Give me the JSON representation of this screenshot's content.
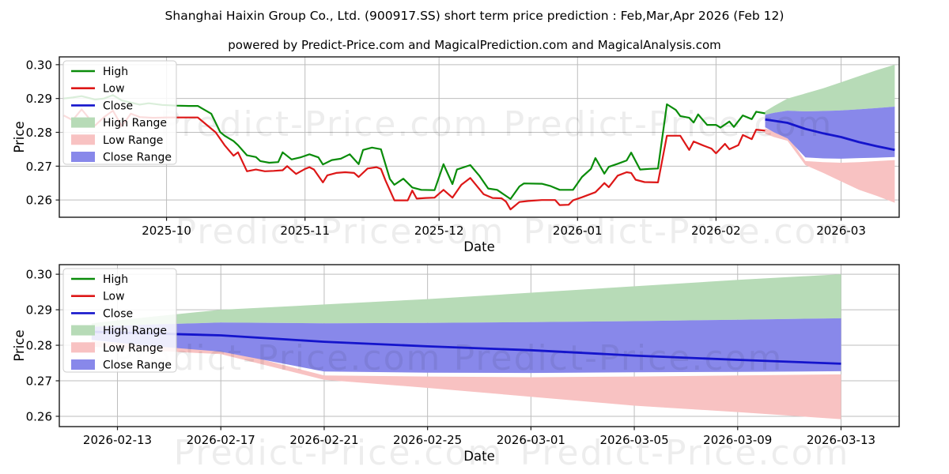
{
  "header": {
    "title": "Shanghai Haixin Group Co., Ltd. (900917.SS) short term price prediction : Feb,Mar,Apr 2026 (Feb 12)",
    "subtitle": "powered by Predict-Price.com and MagicalPrediction.com and MagicalAnalysis.com"
  },
  "watermark": {
    "text": "Predict-Price.com",
    "opacity": 0.07
  },
  "colors": {
    "high": "#0a8c0a",
    "low": "#dd1717",
    "close": "#1414cc",
    "high_range": "#b7dbb7",
    "low_range": "#f8c2c2",
    "close_range": "#8888ea",
    "grid": "#bdbdbd",
    "spine": "#1a1a1a",
    "tick_text": "#000000",
    "legend_border": "#cccccc"
  },
  "legend": {
    "entries": [
      {
        "label": "High",
        "swatch": "line",
        "color_key": "high"
      },
      {
        "label": "Low",
        "swatch": "line",
        "color_key": "low"
      },
      {
        "label": "Close",
        "swatch": "line",
        "color_key": "close"
      },
      {
        "label": "High Range",
        "swatch": "patch",
        "color_key": "high_range"
      },
      {
        "label": "Low Range",
        "swatch": "patch",
        "color_key": "low_range"
      },
      {
        "label": "Close Range",
        "swatch": "patch",
        "color_key": "close_range"
      }
    ]
  },
  "chart_data": [
    {
      "type": "line",
      "name": "history-and-forecast-chart",
      "xlabel": "Date",
      "ylabel": "Price",
      "grid": true,
      "legend_position": "upper left",
      "ylim": [
        0.2549,
        0.3023
      ],
      "xlim": [
        "2025-09-07",
        "2026-03-14"
      ],
      "yticks": [
        0.26,
        0.27,
        0.28,
        0.29,
        0.3
      ],
      "xticks": [
        {
          "d": "2025-10-01",
          "label": "2025-10"
        },
        {
          "d": "2025-11-01",
          "label": "2025-11"
        },
        {
          "d": "2025-12-01",
          "label": "2025-12"
        },
        {
          "d": "2026-01-01",
          "label": "2026-01"
        },
        {
          "d": "2026-02-01",
          "label": "2026-02"
        },
        {
          "d": "2026-03-01",
          "label": "2026-03"
        }
      ],
      "series": [
        {
          "name": "High",
          "color_key": "high",
          "points": [
            [
              "2025-09-08",
              0.29
            ],
            [
              "2025-09-10",
              0.2903
            ],
            [
              "2025-09-12",
              0.2907
            ],
            [
              "2025-09-15",
              0.2897
            ],
            [
              "2025-09-17",
              0.29
            ],
            [
              "2025-09-19",
              0.291
            ],
            [
              "2025-09-21",
              0.2894
            ],
            [
              "2025-09-23",
              0.2888
            ],
            [
              "2025-09-25",
              0.2882
            ],
            [
              "2025-09-27",
              0.2886
            ],
            [
              "2025-09-30",
              0.2881
            ],
            [
              "2025-10-03",
              0.2879
            ],
            [
              "2025-10-06",
              0.2878
            ],
            [
              "2025-10-08",
              0.2878
            ],
            [
              "2025-10-11",
              0.2855
            ],
            [
              "2025-10-13",
              0.2801
            ],
            [
              "2025-10-14",
              0.279
            ],
            [
              "2025-10-16",
              0.2774
            ],
            [
              "2025-10-17",
              0.2762
            ],
            [
              "2025-10-19",
              0.2732
            ],
            [
              "2025-10-21",
              0.2727
            ],
            [
              "2025-10-22",
              0.2715
            ],
            [
              "2025-10-24",
              0.271
            ],
            [
              "2025-10-26",
              0.2712
            ],
            [
              "2025-10-27",
              0.2741
            ],
            [
              "2025-10-29",
              0.272
            ],
            [
              "2025-10-31",
              0.2726
            ],
            [
              "2025-11-02",
              0.2735
            ],
            [
              "2025-11-04",
              0.2726
            ],
            [
              "2025-11-05",
              0.2705
            ],
            [
              "2025-11-07",
              0.2718
            ],
            [
              "2025-11-09",
              0.2722
            ],
            [
              "2025-11-11",
              0.2735
            ],
            [
              "2025-11-13",
              0.2706
            ],
            [
              "2025-11-14",
              0.2748
            ],
            [
              "2025-11-16",
              0.2755
            ],
            [
              "2025-11-18",
              0.275
            ],
            [
              "2025-11-20",
              0.2662
            ],
            [
              "2025-11-21",
              0.2645
            ],
            [
              "2025-11-23",
              0.2663
            ],
            [
              "2025-11-25",
              0.2637
            ],
            [
              "2025-11-27",
              0.263
            ],
            [
              "2025-11-30",
              0.2629
            ],
            [
              "2025-12-02",
              0.2706
            ],
            [
              "2025-12-04",
              0.2647
            ],
            [
              "2025-12-05",
              0.269
            ],
            [
              "2025-12-08",
              0.2703
            ],
            [
              "2025-12-10",
              0.2672
            ],
            [
              "2025-12-12",
              0.2634
            ],
            [
              "2025-12-14",
              0.263
            ],
            [
              "2025-12-17",
              0.2603
            ],
            [
              "2025-12-19",
              0.264
            ],
            [
              "2025-12-20",
              0.2649
            ],
            [
              "2025-12-24",
              0.2648
            ],
            [
              "2025-12-26",
              0.2641
            ],
            [
              "2025-12-28",
              0.263
            ],
            [
              "2025-12-31",
              0.263
            ],
            [
              "2026-01-02",
              0.2668
            ],
            [
              "2026-01-04",
              0.2692
            ],
            [
              "2026-01-05",
              0.2724
            ],
            [
              "2026-01-07",
              0.2678
            ],
            [
              "2026-01-08",
              0.2698
            ],
            [
              "2026-01-10",
              0.2707
            ],
            [
              "2026-01-12",
              0.2717
            ],
            [
              "2026-01-13",
              0.274
            ],
            [
              "2026-01-15",
              0.269
            ],
            [
              "2026-01-17",
              0.2692
            ],
            [
              "2026-01-19",
              0.2693
            ],
            [
              "2026-01-21",
              0.2883
            ],
            [
              "2026-01-23",
              0.2866
            ],
            [
              "2026-01-24",
              0.2848
            ],
            [
              "2026-01-26",
              0.2843
            ],
            [
              "2026-01-27",
              0.2829
            ],
            [
              "2026-01-28",
              0.2853
            ],
            [
              "2026-01-30",
              0.2822
            ],
            [
              "2026-02-01",
              0.2822
            ],
            [
              "2026-02-02",
              0.2814
            ],
            [
              "2026-02-04",
              0.2832
            ],
            [
              "2026-02-05",
              0.2816
            ],
            [
              "2026-02-07",
              0.285
            ],
            [
              "2026-02-09",
              0.2839
            ],
            [
              "2026-02-10",
              0.2861
            ],
            [
              "2026-02-12",
              0.2856
            ]
          ]
        },
        {
          "name": "Low",
          "color_key": "low",
          "points": [
            [
              "2025-09-08",
              0.285
            ],
            [
              "2025-09-10",
              0.2836
            ],
            [
              "2025-09-12",
              0.2868
            ],
            [
              "2025-09-15",
              0.282
            ],
            [
              "2025-09-17",
              0.2845
            ],
            [
              "2025-09-19",
              0.2864
            ],
            [
              "2025-09-21",
              0.2818
            ],
            [
              "2025-09-23",
              0.2855
            ],
            [
              "2025-09-25",
              0.2845
            ],
            [
              "2025-09-28",
              0.2843
            ],
            [
              "2025-10-01",
              0.2844
            ],
            [
              "2025-10-04",
              0.2844
            ],
            [
              "2025-10-08",
              0.2844
            ],
            [
              "2025-10-10",
              0.2822
            ],
            [
              "2025-10-12",
              0.28
            ],
            [
              "2025-10-14",
              0.2762
            ],
            [
              "2025-10-16",
              0.2731
            ],
            [
              "2025-10-17",
              0.2741
            ],
            [
              "2025-10-19",
              0.2685
            ],
            [
              "2025-10-21",
              0.269
            ],
            [
              "2025-10-23",
              0.2685
            ],
            [
              "2025-10-25",
              0.2686
            ],
            [
              "2025-10-27",
              0.2688
            ],
            [
              "2025-10-28",
              0.27
            ],
            [
              "2025-10-30",
              0.2677
            ],
            [
              "2025-11-01",
              0.2692
            ],
            [
              "2025-11-02",
              0.2697
            ],
            [
              "2025-11-03",
              0.269
            ],
            [
              "2025-11-05",
              0.2652
            ],
            [
              "2025-11-06",
              0.2673
            ],
            [
              "2025-11-08",
              0.268
            ],
            [
              "2025-11-10",
              0.2682
            ],
            [
              "2025-11-12",
              0.268
            ],
            [
              "2025-11-13",
              0.2668
            ],
            [
              "2025-11-15",
              0.2693
            ],
            [
              "2025-11-17",
              0.2697
            ],
            [
              "2025-11-18",
              0.2692
            ],
            [
              "2025-11-19",
              0.2658
            ],
            [
              "2025-11-21",
              0.2599
            ],
            [
              "2025-11-24",
              0.2599
            ],
            [
              "2025-11-25",
              0.2628
            ],
            [
              "2025-11-26",
              0.2604
            ],
            [
              "2025-11-28",
              0.2606
            ],
            [
              "2025-11-30",
              0.2607
            ],
            [
              "2025-12-02",
              0.263
            ],
            [
              "2025-12-04",
              0.2607
            ],
            [
              "2025-12-06",
              0.2645
            ],
            [
              "2025-12-08",
              0.2665
            ],
            [
              "2025-12-11",
              0.2617
            ],
            [
              "2025-12-13",
              0.2606
            ],
            [
              "2025-12-15",
              0.2605
            ],
            [
              "2025-12-16",
              0.2595
            ],
            [
              "2025-12-17",
              0.2572
            ],
            [
              "2025-12-19",
              0.2594
            ],
            [
              "2025-12-21",
              0.2597
            ],
            [
              "2025-12-24",
              0.26
            ],
            [
              "2025-12-27",
              0.26
            ],
            [
              "2025-12-28",
              0.2585
            ],
            [
              "2025-12-30",
              0.2586
            ],
            [
              "2025-12-31",
              0.2599
            ],
            [
              "2026-01-02",
              0.2608
            ],
            [
              "2026-01-05",
              0.2623
            ],
            [
              "2026-01-06",
              0.2636
            ],
            [
              "2026-01-07",
              0.265
            ],
            [
              "2026-01-08",
              0.2638
            ],
            [
              "2026-01-10",
              0.2672
            ],
            [
              "2026-01-12",
              0.2682
            ],
            [
              "2026-01-13",
              0.268
            ],
            [
              "2026-01-14",
              0.266
            ],
            [
              "2026-01-16",
              0.2653
            ],
            [
              "2026-01-19",
              0.2652
            ],
            [
              "2026-01-21",
              0.279
            ],
            [
              "2026-01-24",
              0.279
            ],
            [
              "2026-01-26",
              0.2748
            ],
            [
              "2026-01-27",
              0.2773
            ],
            [
              "2026-01-29",
              0.2762
            ],
            [
              "2026-01-31",
              0.2752
            ],
            [
              "2026-02-01",
              0.2738
            ],
            [
              "2026-02-03",
              0.2766
            ],
            [
              "2026-02-04",
              0.275
            ],
            [
              "2026-02-06",
              0.2762
            ],
            [
              "2026-02-07",
              0.2792
            ],
            [
              "2026-02-09",
              0.278
            ],
            [
              "2026-02-10",
              0.2808
            ],
            [
              "2026-02-12",
              0.2805
            ]
          ]
        }
      ],
      "forecast": {
        "dates": [
          "2026-02-12",
          "2026-02-14",
          "2026-02-17",
          "2026-02-21",
          "2026-02-25",
          "2026-03-01",
          "2026-03-05",
          "2026-03-09",
          "2026-03-13"
        ],
        "close": [
          0.2838,
          0.2834,
          0.2828,
          0.281,
          0.2797,
          0.2786,
          0.2771,
          0.2759,
          0.2748
        ],
        "close_upper": [
          0.2852,
          0.2858,
          0.2864,
          0.2862,
          0.2863,
          0.2865,
          0.2868,
          0.2872,
          0.2876
        ],
        "close_lower": [
          0.2815,
          0.28,
          0.2782,
          0.2726,
          0.2723,
          0.2722,
          0.2724,
          0.2725,
          0.2727
        ],
        "high_upper": [
          0.2862,
          0.2878,
          0.29,
          0.2915,
          0.293,
          0.2948,
          0.2966,
          0.2984,
          0.3
        ],
        "high_lower": [
          0.2852,
          0.2858,
          0.2864,
          0.2862,
          0.2863,
          0.2865,
          0.2868,
          0.2872,
          0.2876
        ],
        "low_upper": [
          0.2812,
          0.2802,
          0.279,
          0.2715,
          0.2712,
          0.271,
          0.2712,
          0.2715,
          0.2718
        ],
        "low_lower": [
          0.2796,
          0.2786,
          0.2775,
          0.2703,
          0.268,
          0.2655,
          0.263,
          0.2612,
          0.2592
        ]
      }
    },
    {
      "type": "area",
      "name": "forecast-detail-chart",
      "xlabel": "Date",
      "ylabel": "Price",
      "grid": true,
      "legend_position": "upper left",
      "ylim": [
        0.2571,
        0.3027
      ],
      "xlim": [
        "2026-02-10T18:00:00Z",
        "2026-03-15T06:00:00Z"
      ],
      "yticks": [
        0.26,
        0.27,
        0.28,
        0.29,
        0.3
      ],
      "xticks": [
        {
          "d": "2026-02-13",
          "label": "2026-02-13"
        },
        {
          "d": "2026-02-17",
          "label": "2026-02-17"
        },
        {
          "d": "2026-02-21",
          "label": "2026-02-21"
        },
        {
          "d": "2026-02-25",
          "label": "2026-02-25"
        },
        {
          "d": "2026-03-01",
          "label": "2026-03-01"
        },
        {
          "d": "2026-03-05",
          "label": "2026-03-05"
        },
        {
          "d": "2026-03-09",
          "label": "2026-03-09"
        },
        {
          "d": "2026-03-13",
          "label": "2026-03-13"
        }
      ],
      "series": [],
      "forecast_from_chart": 0
    }
  ]
}
